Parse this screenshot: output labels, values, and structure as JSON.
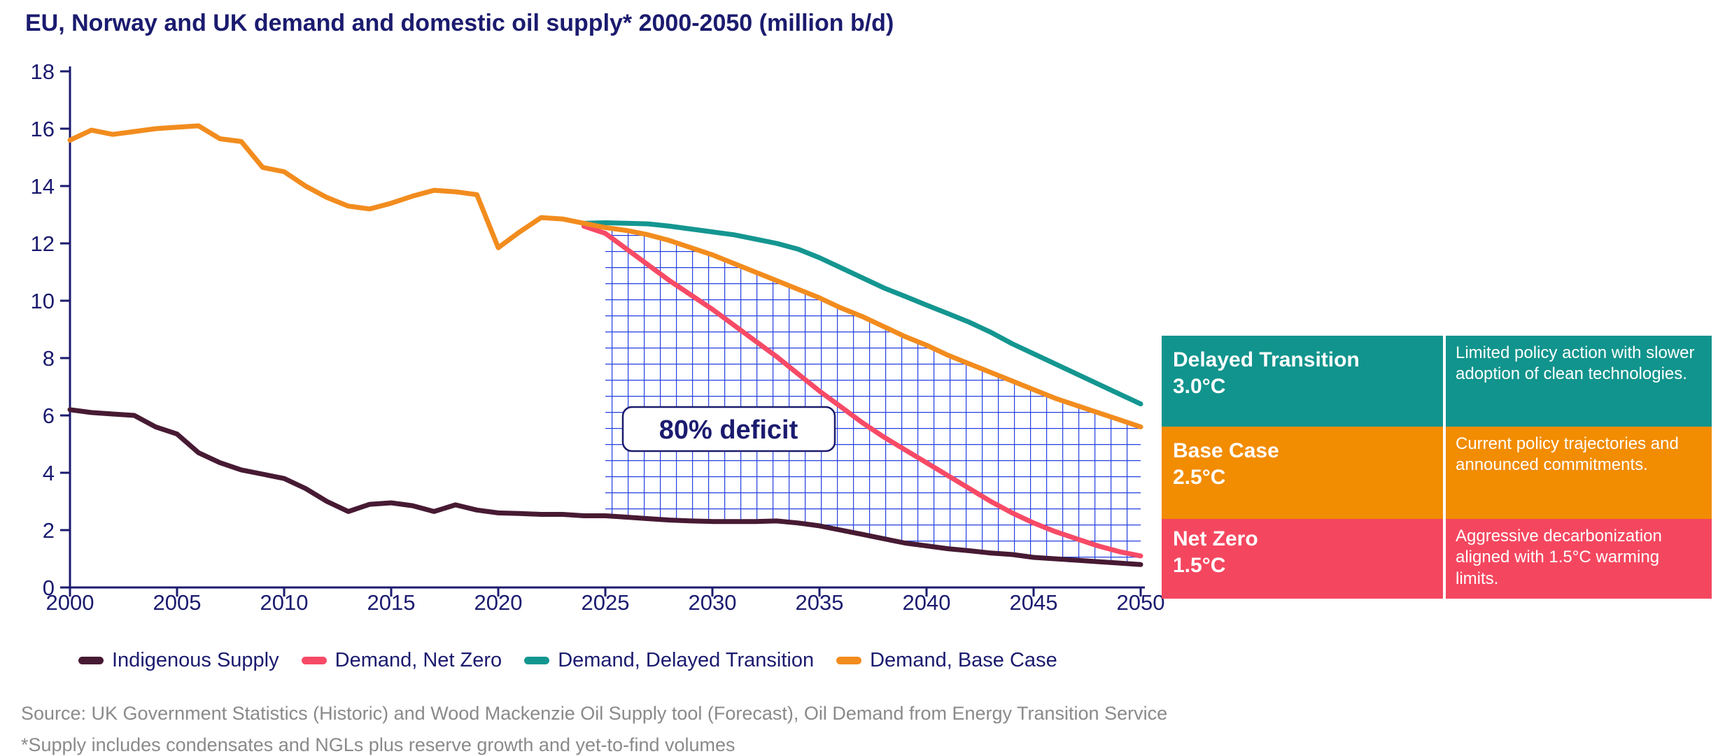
{
  "colors": {
    "navy": "#1b1b6f",
    "text_gray": "#8a8a8a",
    "background": "#ffffff"
  },
  "chart_data": {
    "type": "line",
    "title": "EU, Norway and UK demand and domestic oil supply* 2000-2050 (million b/d)",
    "xlabel": "",
    "ylabel": "million b/d",
    "xlim": [
      2000,
      2050
    ],
    "ylim": [
      0,
      18
    ],
    "x_ticks": [
      2000,
      2005,
      2010,
      2015,
      2020,
      2025,
      2030,
      2035,
      2040,
      2045,
      2050
    ],
    "y_ticks": [
      0,
      2,
      4,
      6,
      8,
      10,
      12,
      14,
      16,
      18
    ],
    "grid": false,
    "legend_position": "bottom",
    "series": [
      {
        "name": "Indigenous Supply",
        "color": "#471A33",
        "x": [
          2000,
          2001,
          2002,
          2003,
          2004,
          2005,
          2006,
          2007,
          2008,
          2009,
          2010,
          2011,
          2012,
          2013,
          2014,
          2015,
          2016,
          2017,
          2018,
          2019,
          2020,
          2021,
          2022,
          2023,
          2024,
          2025,
          2026,
          2027,
          2028,
          2029,
          2030,
          2031,
          2032,
          2033,
          2034,
          2035,
          2036,
          2037,
          2038,
          2039,
          2040,
          2041,
          2042,
          2043,
          2044,
          2045,
          2046,
          2047,
          2048,
          2049,
          2050
        ],
        "values": [
          6.2,
          6.1,
          6.05,
          6.0,
          5.6,
          5.35,
          4.7,
          4.35,
          4.1,
          3.95,
          3.8,
          3.45,
          3.0,
          2.65,
          2.9,
          2.95,
          2.85,
          2.65,
          2.88,
          2.7,
          2.6,
          2.58,
          2.55,
          2.55,
          2.5,
          2.5,
          2.45,
          2.4,
          2.35,
          2.32,
          2.3,
          2.3,
          2.3,
          2.32,
          2.25,
          2.15,
          2.0,
          1.85,
          1.7,
          1.55,
          1.45,
          1.35,
          1.28,
          1.2,
          1.15,
          1.05,
          1.0,
          0.95,
          0.9,
          0.85,
          0.8
        ]
      },
      {
        "name": "Demand, Net Zero",
        "color": "#F74A66",
        "x": [
          2024,
          2025,
          2026,
          2027,
          2028,
          2029,
          2030,
          2031,
          2032,
          2033,
          2034,
          2035,
          2036,
          2037,
          2038,
          2039,
          2040,
          2041,
          2042,
          2043,
          2044,
          2045,
          2046,
          2047,
          2048,
          2049,
          2050
        ],
        "values": [
          12.6,
          12.35,
          11.8,
          11.25,
          10.7,
          10.2,
          9.7,
          9.15,
          8.6,
          8.05,
          7.45,
          6.85,
          6.3,
          5.75,
          5.25,
          4.8,
          4.35,
          3.9,
          3.45,
          3.0,
          2.6,
          2.25,
          1.95,
          1.7,
          1.45,
          1.25,
          1.1
        ]
      },
      {
        "name": "Demand, Delayed Transition",
        "color": "#149690",
        "x": [
          2024,
          2025,
          2026,
          2027,
          2028,
          2029,
          2030,
          2031,
          2032,
          2033,
          2034,
          2035,
          2036,
          2037,
          2038,
          2039,
          2040,
          2041,
          2042,
          2043,
          2044,
          2045,
          2046,
          2047,
          2048,
          2049,
          2050
        ],
        "values": [
          12.7,
          12.72,
          12.7,
          12.68,
          12.6,
          12.5,
          12.4,
          12.3,
          12.15,
          12.0,
          11.8,
          11.5,
          11.15,
          10.8,
          10.45,
          10.15,
          9.85,
          9.55,
          9.25,
          8.9,
          8.5,
          8.15,
          7.8,
          7.45,
          7.1,
          6.75,
          6.4
        ]
      },
      {
        "name": "Demand, Base Case",
        "color": "#F28C1E",
        "x": [
          2000,
          2001,
          2002,
          2003,
          2004,
          2005,
          2006,
          2007,
          2008,
          2009,
          2010,
          2011,
          2012,
          2013,
          2014,
          2015,
          2016,
          2017,
          2018,
          2019,
          2020,
          2021,
          2022,
          2023,
          2024,
          2025,
          2026,
          2027,
          2028,
          2029,
          2030,
          2031,
          2032,
          2033,
          2034,
          2035,
          2036,
          2037,
          2038,
          2039,
          2040,
          2041,
          2042,
          2043,
          2044,
          2045,
          2046,
          2047,
          2048,
          2049,
          2050
        ],
        "values": [
          15.6,
          15.95,
          15.8,
          15.9,
          16.0,
          16.05,
          16.1,
          15.65,
          15.55,
          14.65,
          14.5,
          14.0,
          13.6,
          13.3,
          13.2,
          13.4,
          13.65,
          13.85,
          13.8,
          13.7,
          11.85,
          12.4,
          12.9,
          12.85,
          12.7,
          12.55,
          12.45,
          12.3,
          12.1,
          11.85,
          11.6,
          11.3,
          11.0,
          10.7,
          10.4,
          10.1,
          9.75,
          9.45,
          9.1,
          8.75,
          8.45,
          8.1,
          7.8,
          7.5,
          7.2,
          6.9,
          6.6,
          6.35,
          6.1,
          5.85,
          5.6
        ]
      }
    ],
    "deficit_region": {
      "label": "80% deficit",
      "between": [
        "Demand, Base Case",
        "Indigenous Supply"
      ],
      "from_year": 2025,
      "to_year": 2050,
      "hatch_color": "#2440E0"
    }
  },
  "legend": {
    "items": [
      {
        "label": "Indigenous Supply",
        "color": "#471A33"
      },
      {
        "label": "Demand, Net Zero",
        "color": "#F74A66"
      },
      {
        "label": "Demand, Delayed Transition",
        "color": "#149690"
      },
      {
        "label": "Demand, Base Case",
        "color": "#F28C1E"
      }
    ]
  },
  "scenario_table": {
    "rows": [
      {
        "name": "Delayed Transition",
        "temp": "3.0°C",
        "color": "#11948D",
        "description": "Limited policy action with slower adoption of clean technologies."
      },
      {
        "name": "Base Case",
        "temp": "2.5°C",
        "color": "#F28C00",
        "description": "Current policy trajectories and announced commitments."
      },
      {
        "name": "Net Zero",
        "temp": "1.5°C",
        "color": "#F4475F",
        "description": "Aggressive decarbonization aligned with 1.5°C warming limits."
      }
    ]
  },
  "source": "Source: UK Government Statistics (Historic) and Wood Mackenzie Oil Supply tool (Forecast), Oil Demand from Energy Transition Service",
  "footnote": "*Supply includes condensates and NGLs plus reserve growth and yet-to-find volumes"
}
